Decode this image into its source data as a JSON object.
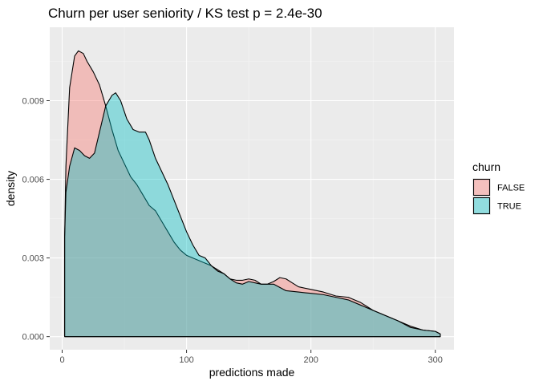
{
  "chart_data": {
    "type": "area",
    "title": "Churn per user seniority / KS test p = 2.4e-30",
    "xlabel": "predictions made",
    "ylabel": "density",
    "xlim": [
      -10,
      315
    ],
    "ylim": [
      -0.0005,
      0.0118
    ],
    "x_ticks": [
      0,
      100,
      200,
      300
    ],
    "y_ticks": [
      0.0,
      0.003,
      0.006,
      0.009
    ],
    "y_tick_labels": [
      "0.000",
      "0.003",
      "0.006",
      "0.009"
    ],
    "grid": true,
    "legend": {
      "title": "churn",
      "position": "right"
    },
    "series": [
      {
        "name": "FALSE",
        "color": "#f8766d",
        "x": [
          2,
          3,
          6,
          10,
          13,
          17,
          20,
          25,
          30,
          35,
          40,
          45,
          50,
          55,
          60,
          65,
          70,
          75,
          80,
          85,
          90,
          95,
          100,
          105,
          110,
          115,
          120,
          125,
          130,
          135,
          140,
          145,
          150,
          155,
          160,
          165,
          170,
          175,
          180,
          185,
          190,
          200,
          210,
          220,
          230,
          240,
          250,
          260,
          270,
          280,
          290,
          300,
          304
        ],
        "y": [
          0.0038,
          0.0065,
          0.0095,
          0.0107,
          0.0109,
          0.0108,
          0.0105,
          0.0101,
          0.0096,
          0.0088,
          0.0079,
          0.0071,
          0.0066,
          0.0061,
          0.0058,
          0.0054,
          0.005,
          0.0048,
          0.0044,
          0.004,
          0.0036,
          0.0033,
          0.0031,
          0.003,
          0.0029,
          0.0028,
          0.0027,
          0.00255,
          0.0024,
          0.0022,
          0.00215,
          0.00215,
          0.0022,
          0.00215,
          0.002,
          0.002,
          0.0021,
          0.00225,
          0.0022,
          0.00205,
          0.0019,
          0.0018,
          0.0017,
          0.00155,
          0.0015,
          0.0013,
          0.001,
          0.0008,
          0.0006,
          0.0004,
          0.00025,
          0.0002,
          0.0001
        ]
      },
      {
        "name": "TRUE",
        "color": "#00bfc4",
        "x": [
          2,
          3,
          6,
          10,
          14,
          18,
          22,
          26,
          30,
          35,
          40,
          43,
          47,
          52,
          57,
          62,
          67,
          70,
          75,
          80,
          85,
          90,
          95,
          100,
          105,
          110,
          115,
          120,
          125,
          130,
          135,
          140,
          145,
          150,
          160,
          170,
          180,
          190,
          200,
          210,
          220,
          230,
          240,
          250,
          260,
          270,
          280,
          290,
          300,
          304
        ],
        "y": [
          0.0038,
          0.0055,
          0.0065,
          0.0072,
          0.0071,
          0.0069,
          0.0068,
          0.007,
          0.0078,
          0.0088,
          0.0092,
          0.0093,
          0.009,
          0.0083,
          0.0079,
          0.0078,
          0.0078,
          0.0075,
          0.0068,
          0.0063,
          0.0058,
          0.0052,
          0.0046,
          0.004,
          0.0035,
          0.0031,
          0.003,
          0.0027,
          0.0025,
          0.0024,
          0.0022,
          0.00205,
          0.002,
          0.0021,
          0.002,
          0.002,
          0.00175,
          0.0017,
          0.00165,
          0.0016,
          0.0015,
          0.0014,
          0.0012,
          0.001,
          0.0008,
          0.0006,
          0.00035,
          0.00025,
          0.0002,
          0.0001
        ]
      }
    ]
  }
}
